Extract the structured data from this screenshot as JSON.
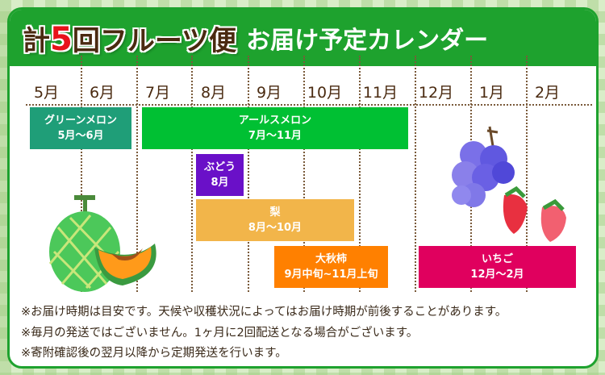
{
  "header": {
    "prefix": "計",
    "count": "5",
    "suffix": "回フルーツ便",
    "subtitle": "お届け予定カレンダー"
  },
  "months": [
    "5月",
    "6月",
    "7月",
    "8月",
    "9月",
    "10月",
    "11月",
    "12月",
    "1月",
    "2月"
  ],
  "schedule": [
    {
      "name": "グリーンメロン",
      "period": "5月〜6月",
      "color": "#1f9e78"
    },
    {
      "name": "アールスメロン",
      "period": "7月〜11月",
      "color": "#00c033"
    },
    {
      "name": "ぶどう",
      "period": "8月",
      "color": "#6a10c8"
    },
    {
      "name": "梨",
      "period": "8月〜10月",
      "color": "#f2b54a"
    },
    {
      "name": "大秋柿",
      "period": "9月中旬~11月上旬",
      "color": "#ff8000"
    },
    {
      "name": "いちご",
      "period": "12月〜2月",
      "color": "#e0005e"
    }
  ],
  "notes": [
    "※お届け時期は目安です。天候や収穫状況によってはお届け時期が前後することがあります。",
    "※毎月の発送ではございません。1ヶ月に2回配送となる場合がございます。",
    "※寄附確認後の翌月以降から定期発送を行います。"
  ]
}
